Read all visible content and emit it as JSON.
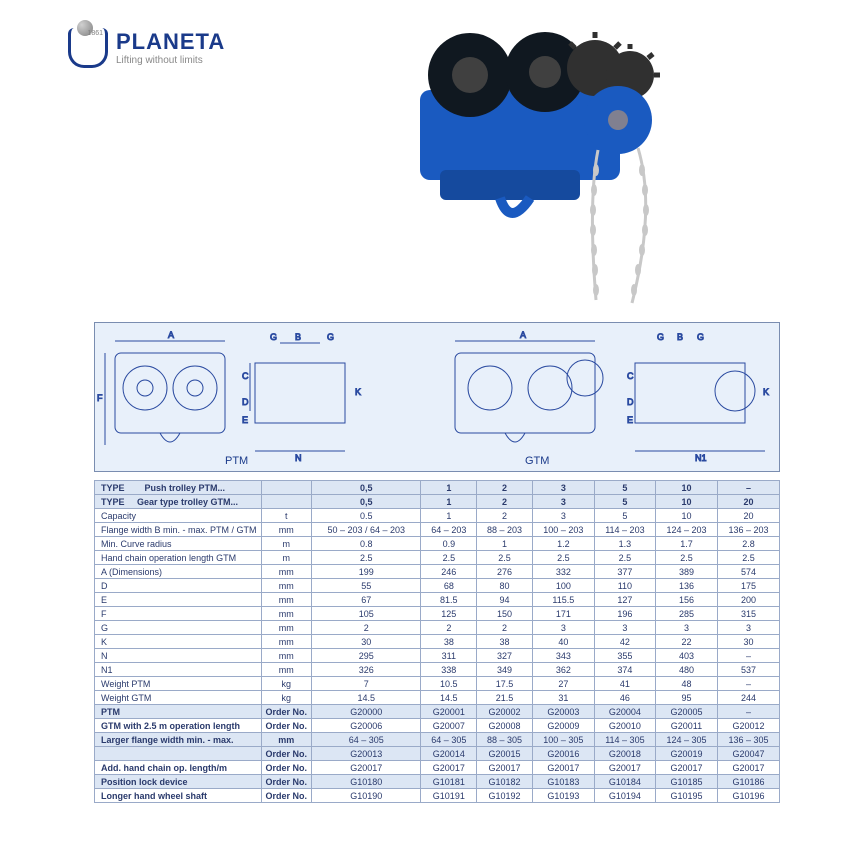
{
  "logo": {
    "brand": "PLANETA",
    "tagline": "Lifting without limits",
    "year": "1861"
  },
  "diagram": {
    "label_ptm": "PTM",
    "label_gtm": "GTM",
    "dims": [
      "A",
      "B",
      "C",
      "D",
      "E",
      "F",
      "G",
      "K",
      "N",
      "N1"
    ],
    "line_color": "#2a4aa0",
    "bg_color": "#e8f0fa"
  },
  "table": {
    "header": {
      "type_label": "TYPE",
      "ptm_label": "Push trolley PTM...",
      "gtm_label": "Gear type trolley GTM...",
      "ptm_sizes": [
        "0,5",
        "1",
        "2",
        "3",
        "5",
        "10",
        "–"
      ],
      "gtm_sizes": [
        "0,5",
        "1",
        "2",
        "3",
        "5",
        "10",
        "20"
      ]
    },
    "rows": [
      {
        "label": "Capacity",
        "unit": "t",
        "v": [
          "0.5",
          "1",
          "2",
          "3",
          "5",
          "10",
          "20"
        ]
      },
      {
        "label": "Flange width B min. - max. PTM / GTM",
        "unit": "mm",
        "v": [
          "50 – 203 / 64 – 203",
          "64 – 203",
          "88 – 203",
          "100 – 203",
          "114 – 203",
          "124 – 203",
          "136 – 203"
        ]
      },
      {
        "label": "Min. Curve radius",
        "unit": "m",
        "v": [
          "0.8",
          "0.9",
          "1",
          "1.2",
          "1.3",
          "1.7",
          "2.8"
        ]
      },
      {
        "label": "Hand chain operation length GTM",
        "unit": "m",
        "v": [
          "2.5",
          "2.5",
          "2.5",
          "2.5",
          "2.5",
          "2.5",
          "2.5"
        ]
      },
      {
        "label": "A (Dimensions)",
        "unit": "mm",
        "v": [
          "199",
          "246",
          "276",
          "332",
          "377",
          "389",
          "574"
        ]
      },
      {
        "label": "D",
        "unit": "mm",
        "v": [
          "55",
          "68",
          "80",
          "100",
          "110",
          "136",
          "175"
        ]
      },
      {
        "label": "E",
        "unit": "mm",
        "v": [
          "67",
          "81.5",
          "94",
          "115.5",
          "127",
          "156",
          "200"
        ]
      },
      {
        "label": "F",
        "unit": "mm",
        "v": [
          "105",
          "125",
          "150",
          "171",
          "196",
          "285",
          "315"
        ]
      },
      {
        "label": "G",
        "unit": "mm",
        "v": [
          "2",
          "2",
          "2",
          "3",
          "3",
          "3",
          "3"
        ]
      },
      {
        "label": "K",
        "unit": "mm",
        "v": [
          "30",
          "38",
          "38",
          "40",
          "42",
          "22",
          "30"
        ]
      },
      {
        "label": "N",
        "unit": "mm",
        "v": [
          "295",
          "311",
          "327",
          "343",
          "355",
          "403",
          "–"
        ]
      },
      {
        "label": "N1",
        "unit": "mm",
        "v": [
          "326",
          "338",
          "349",
          "362",
          "374",
          "480",
          "537"
        ]
      },
      {
        "label": "Weight PTM",
        "unit": "kg",
        "v": [
          "7",
          "10.5",
          "17.5",
          "27",
          "41",
          "48",
          "–"
        ]
      },
      {
        "label": "Weight GTM",
        "unit": "kg",
        "v": [
          "14.5",
          "14.5",
          "21.5",
          "31",
          "46",
          "95",
          "244"
        ]
      }
    ],
    "order_rows": [
      {
        "label": "PTM",
        "sub": "Order No.",
        "v": [
          "G20000",
          "G20001",
          "G20002",
          "G20003",
          "G20004",
          "G20005",
          "–"
        ],
        "shade": true
      },
      {
        "label": "GTM with 2.5 m operation length",
        "sub": "Order No.",
        "v": [
          "G20006",
          "G20007",
          "G20008",
          "G20009",
          "G20010",
          "G20011",
          "G20012"
        ],
        "shade": false
      },
      {
        "label": "Larger flange width min. - max.",
        "sub": "mm",
        "v": [
          "64 – 305",
          "64 – 305",
          "88 – 305",
          "100 – 305",
          "114 – 305",
          "124 – 305",
          "136 – 305"
        ],
        "shade": true
      },
      {
        "label": "",
        "sub": "Order No.",
        "v": [
          "G20013",
          "G20014",
          "G20015",
          "G20016",
          "G20018",
          "G20019",
          "G20047"
        ],
        "shade": true
      },
      {
        "label": "Add. hand chain op. length/m",
        "sub": "Order No.",
        "v": [
          "G20017",
          "G20017",
          "G20017",
          "G20017",
          "G20017",
          "G20017",
          "G20017"
        ],
        "shade": false
      },
      {
        "label": "Position lock device",
        "sub": "Order No.",
        "v": [
          "G10180",
          "G10181",
          "G10182",
          "G10183",
          "G10184",
          "G10185",
          "G10186"
        ],
        "shade": true
      },
      {
        "label": "Longer hand wheel shaft",
        "sub": "Order No.",
        "v": [
          "G10190",
          "G10191",
          "G10192",
          "G10193",
          "G10194",
          "G10195",
          "G10196"
        ],
        "shade": false
      }
    ],
    "colors": {
      "border": "#9aaac8",
      "shade_bg": "#dce6f4",
      "text": "#2a3a6c"
    }
  },
  "photo": {
    "body_color": "#1a5ac0",
    "wheel_color": "#101820",
    "chain_color": "#c8c8c8",
    "gear_color": "#303030"
  }
}
